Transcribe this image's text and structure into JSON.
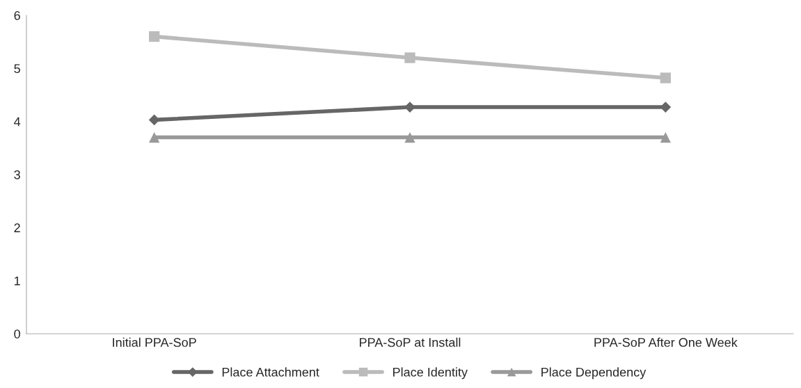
{
  "chart_data": {
    "type": "line",
    "categories": [
      "Initial PPA-SoP",
      "PPA-SoP at Install",
      "PPA-SoP After One Week"
    ],
    "series": [
      {
        "name": "Place Attachment",
        "color": "#666666",
        "marker": "diamond",
        "values": [
          4.03,
          4.27,
          4.27
        ]
      },
      {
        "name": "Place Identity",
        "color": "#bbbbbb",
        "marker": "square",
        "values": [
          5.6,
          5.2,
          4.82
        ]
      },
      {
        "name": "Place Dependency",
        "color": "#999999",
        "marker": "triangle",
        "values": [
          3.7,
          3.7,
          3.7
        ]
      }
    ],
    "ylim": [
      0,
      6
    ],
    "yticks": [
      0,
      1,
      2,
      3,
      4,
      5,
      6
    ],
    "grid": false,
    "legend": "bottom",
    "line_style": "solid"
  }
}
